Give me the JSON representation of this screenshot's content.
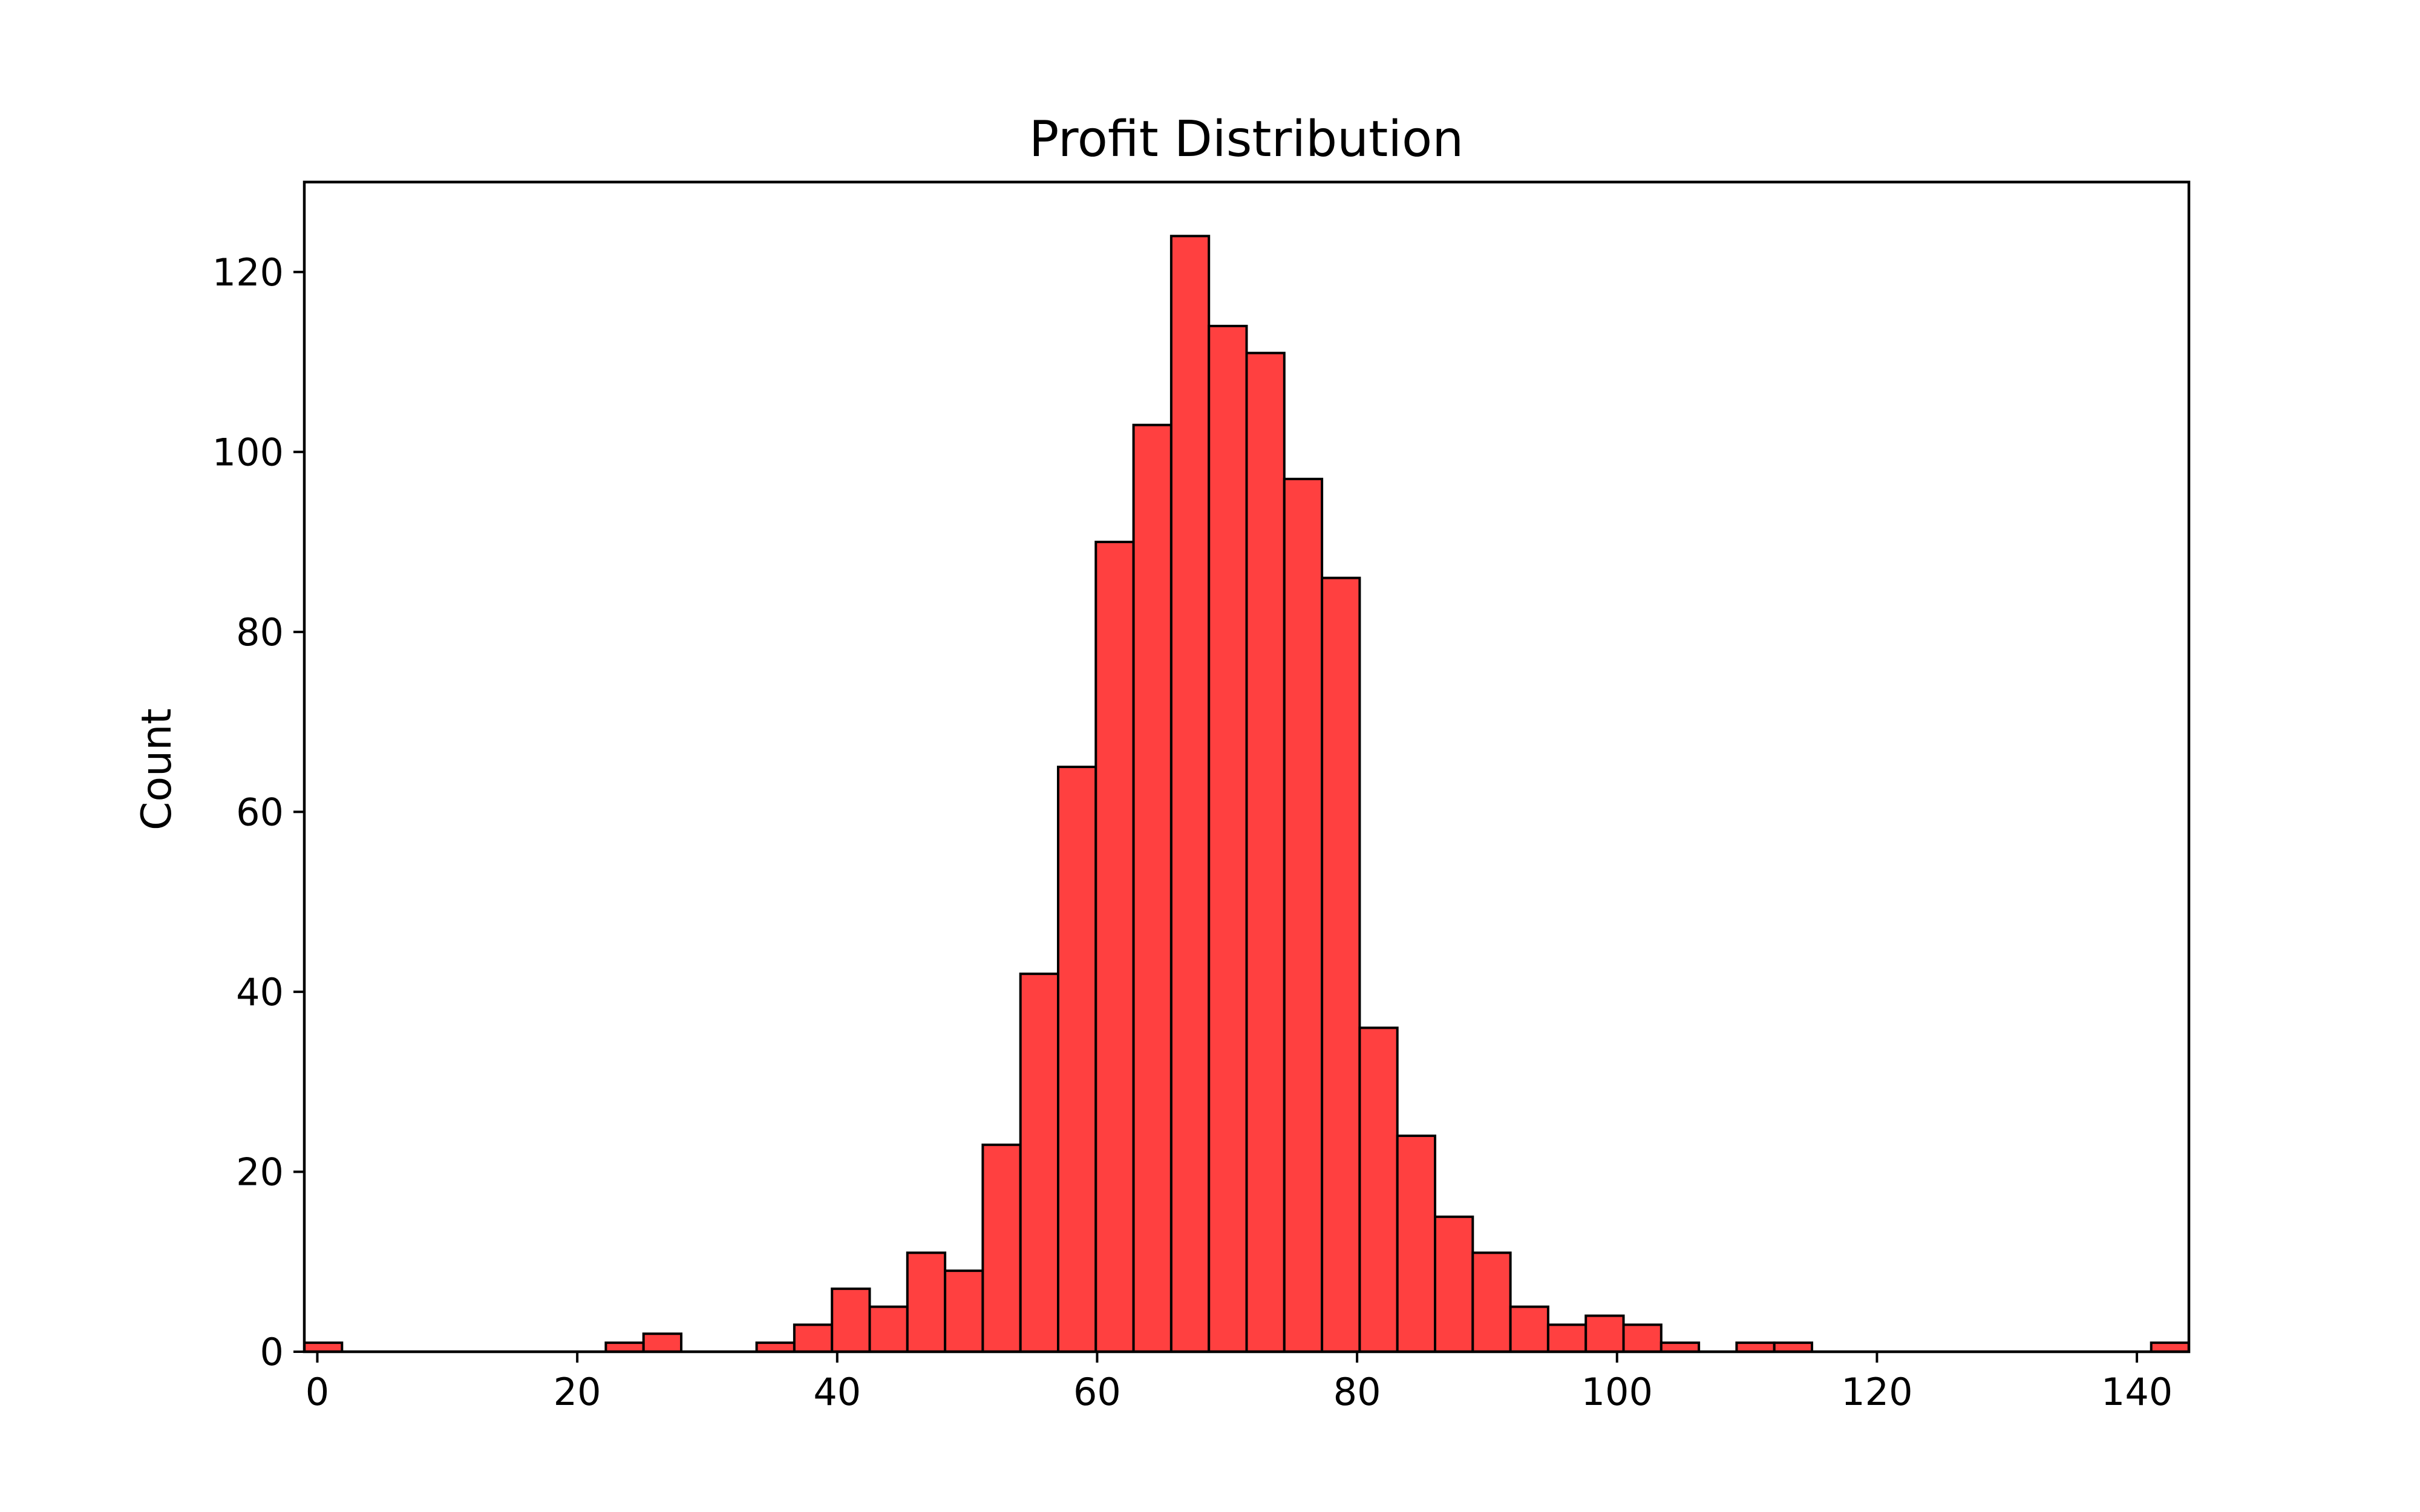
{
  "chart_data": {
    "type": "bar",
    "title": "Profit Distribution",
    "xlabel": "",
    "ylabel": "Count",
    "xlim": [
      -1.0,
      144.0
    ],
    "ylim": [
      0,
      130
    ],
    "xticks": [
      0,
      20,
      40,
      60,
      80,
      100,
      120,
      140
    ],
    "yticks": [
      0,
      20,
      40,
      60,
      80,
      100,
      120
    ],
    "bin_start": -1.0,
    "bin_width": 2.9,
    "counts": [
      1,
      0,
      0,
      0,
      0,
      0,
      0,
      0,
      1,
      2,
      0,
      0,
      1,
      3,
      7,
      5,
      11,
      9,
      23,
      42,
      65,
      90,
      103,
      124,
      114,
      111,
      97,
      86,
      36,
      24,
      15,
      11,
      5,
      3,
      4,
      3,
      1,
      0,
      1,
      1,
      0,
      0,
      0,
      0,
      0,
      0,
      0,
      0,
      0,
      1
    ],
    "grid": false,
    "legend": "none",
    "colors": {
      "bar_fill": "#ff4040",
      "bar_edge": "#000000"
    }
  }
}
